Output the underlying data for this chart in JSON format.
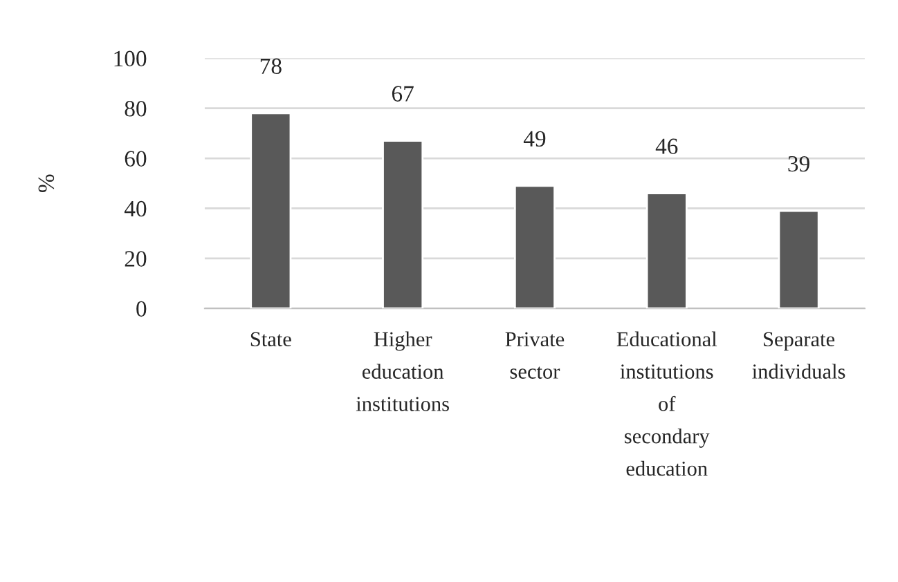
{
  "chart_data": {
    "type": "bar",
    "categories": [
      "State",
      "Higher\neducation\ninstitutions",
      "Private\nsector",
      "Educational\ninstitutions\nof\nsecondary\neducation",
      "Separate\nindividuals"
    ],
    "values": [
      78,
      67,
      49,
      46,
      39
    ],
    "color": "#595959",
    "ylabel": "%",
    "ylim": [
      0,
      100
    ],
    "yticks": [
      0,
      20,
      40,
      60,
      80,
      100
    ],
    "grid": "y",
    "data_labels": true,
    "legend": false
  }
}
